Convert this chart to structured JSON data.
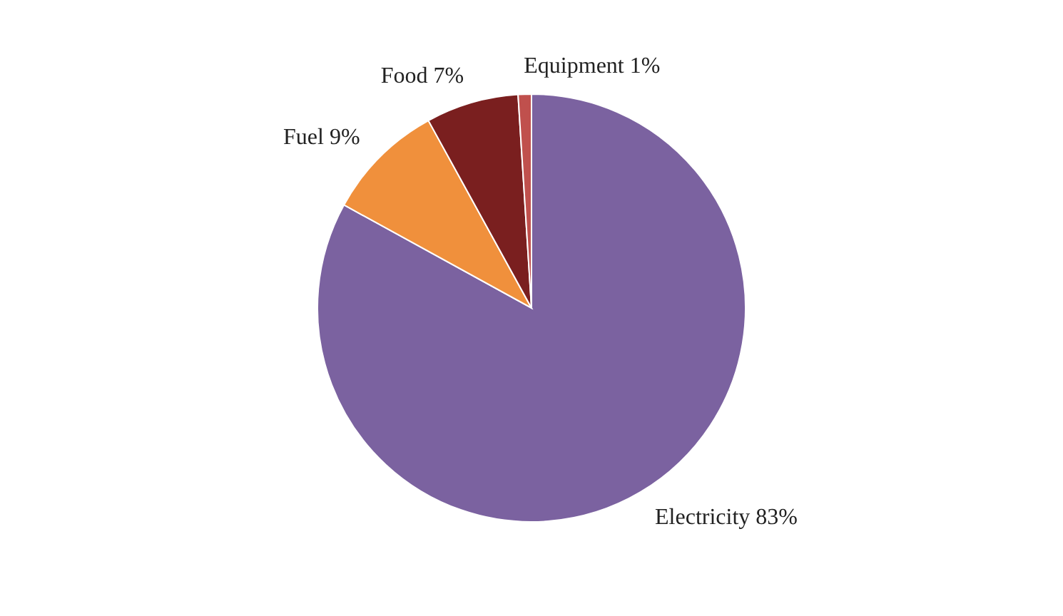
{
  "chart_data": {
    "type": "pie",
    "categories": [
      "Electricity",
      "Fuel",
      "Food",
      "Equipment"
    ],
    "values": [
      83,
      9,
      7,
      1
    ],
    "colors": [
      "#7b62a0",
      "#f0903c",
      "#7a1f1f",
      "#c0504d"
    ],
    "value_labels": [
      "83%",
      "9%",
      "7%",
      "1%"
    ],
    "legend": false
  }
}
